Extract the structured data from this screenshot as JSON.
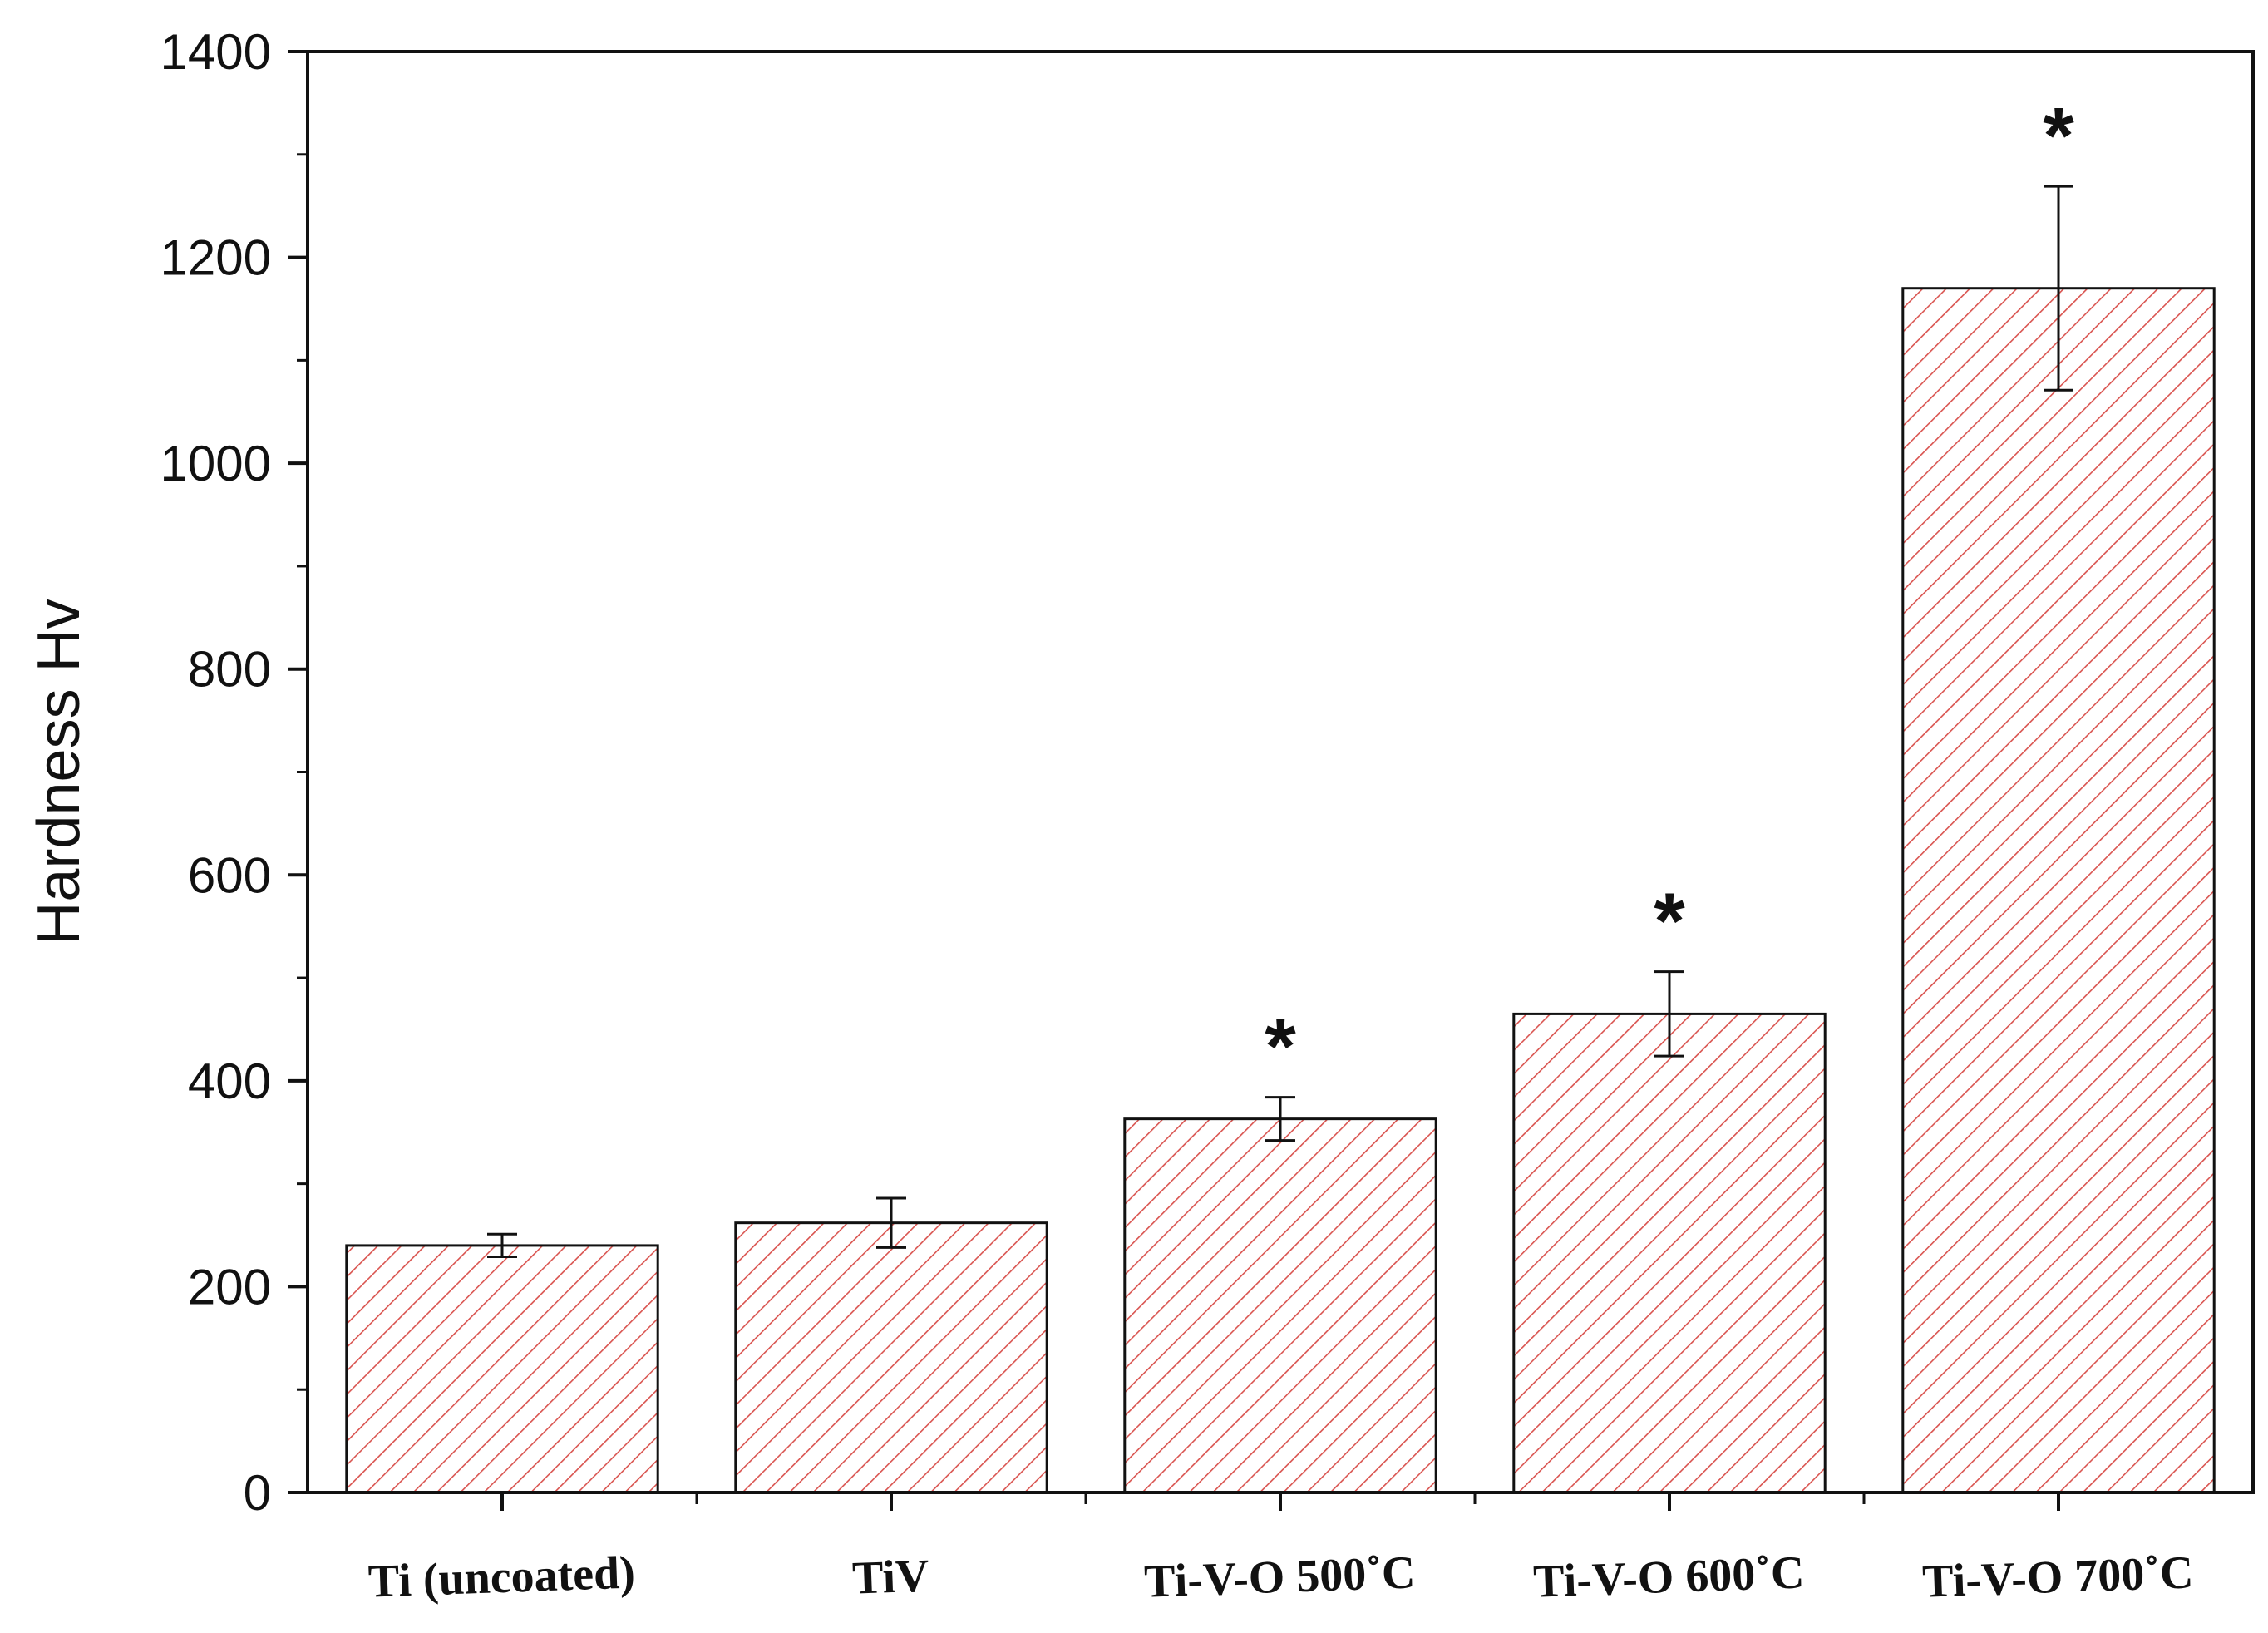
{
  "chart_data": {
    "type": "bar",
    "title": "",
    "xlabel": "",
    "ylabel": "Hardness Hv",
    "ylim": [
      0,
      1400
    ],
    "yticks": [
      "0",
      "200",
      "400",
      "600",
      "800",
      "1000",
      "1200",
      "1400"
    ],
    "categories": [
      "Ti (uncoated)",
      "TiV",
      "Ti-V-O  500˚C",
      "Ti-V-O  600˚C",
      "Ti-V-O  700˚C"
    ],
    "values": [
      240,
      262,
      363,
      465,
      1170
    ],
    "errors": [
      11,
      24,
      21,
      41,
      99
    ],
    "significance": [
      "",
      "",
      "*",
      "*",
      "*"
    ],
    "bar_fill_pattern": "diagonal-hatch",
    "bar_hatch_color": "#d9534f",
    "bar_edge_color": "#111111",
    "grid": false
  }
}
